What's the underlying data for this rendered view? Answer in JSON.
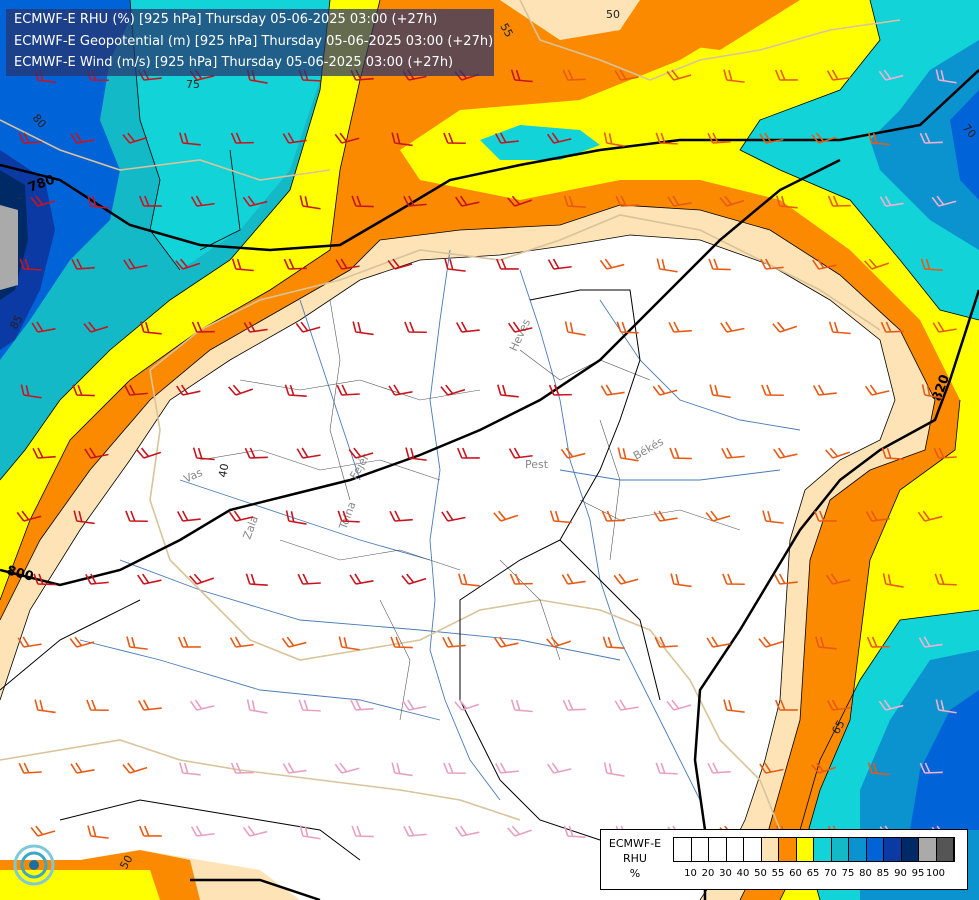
{
  "title": {
    "line1": "ECMWF-E RHU (%) [925 hPa] Thursday 05-06-2025 03:00 (+27h)",
    "line2": "ECMWF-E Geopotential (m) [925 hPa] Thursday 05-06-2025 03:00 (+27h)",
    "line3": "ECMWF-E Wind (m/s) [925 hPa] Thursday 05-06-2025 03:00 (+27h)"
  },
  "geopotential_labels": [
    "780",
    "800",
    "820"
  ],
  "rhu_contour_labels": [
    "50",
    "55",
    "65",
    "75",
    "80",
    "85",
    "70",
    "40",
    "50"
  ],
  "place_labels": [
    "Heves",
    "Vas",
    "Zala",
    "Tolna",
    "Fejér",
    "Pest",
    "Békés"
  ],
  "legend": {
    "label_line1": "ECMWF-E",
    "label_line2": "RHU",
    "label_line3": "%",
    "ticks": [
      "10",
      "20",
      "30",
      "40",
      "50",
      "55",
      "60",
      "65",
      "70",
      "75",
      "80",
      "85",
      "90",
      "95",
      "100"
    ],
    "colors": [
      "#ffffff",
      "#ffffff",
      "#ffffff",
      "#ffffff",
      "#ffffff",
      "#fde3b6",
      "#fb8a00",
      "#ffff00",
      "#11d3d8",
      "#14b9c8",
      "#0a93cf",
      "#0064d8",
      "#0c3aa4",
      "#002a66",
      "#aaaaaa",
      "#555555"
    ]
  },
  "colors": {
    "white": "#ffffff",
    "peach": "#fde3b6",
    "orange": "#fb8a00",
    "yellow": "#ffff00",
    "cyan": "#11d3d8",
    "teal": "#14b9c8",
    "blue": "#0a93cf",
    "deepblue": "#0064d8",
    "navy": "#0c3aa4",
    "darknavy": "#002a66",
    "grey": "#aaaaaa"
  }
}
